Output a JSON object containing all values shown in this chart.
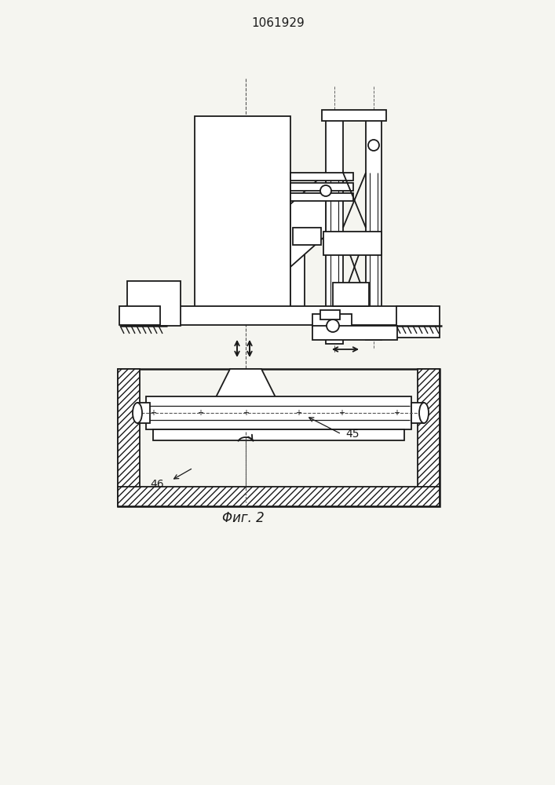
{
  "title": "1061929",
  "fig_label": "Φиг. 2",
  "label_45": "45",
  "label_46": "46",
  "bg_color": "#f5f5f0",
  "lc": "#1a1a1a",
  "lw": 1.3
}
